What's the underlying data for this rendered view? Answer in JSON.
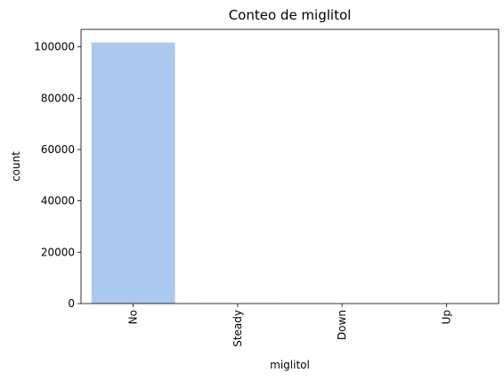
{
  "chart_data": {
    "type": "bar",
    "title": "Conteo de miglitol",
    "xlabel": "miglitol",
    "ylabel": "count",
    "categories": [
      "No",
      "Steady",
      "Down",
      "Up"
    ],
    "values": [
      101728,
      31,
      5,
      2
    ],
    "ylim": [
      0,
      106814
    ],
    "yticks": [
      0,
      20000,
      40000,
      60000,
      80000,
      100000
    ],
    "bar_color": "#abc9ee",
    "grid": false,
    "legend": "none"
  }
}
